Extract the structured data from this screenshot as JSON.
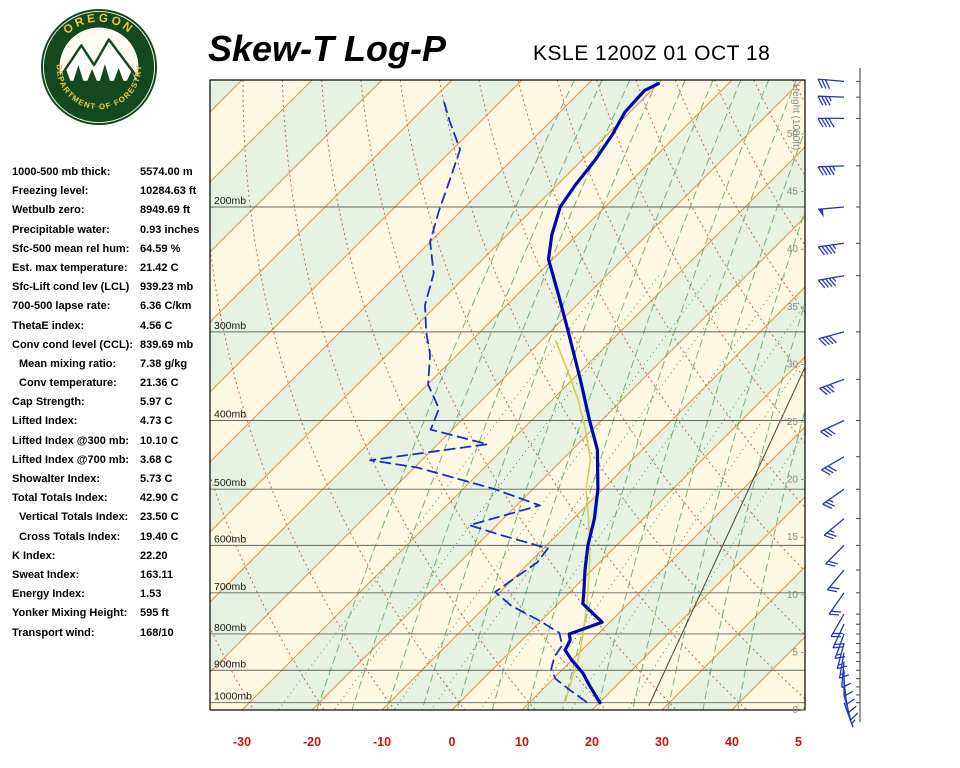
{
  "theme": {
    "logo_green": "#14491f",
    "logo_gold": "#ecc43f"
  },
  "header": {
    "title": "Skew-T Log-P",
    "station": "KSLE 1200Z 01 OCT 18",
    "logo": {
      "top_text": "OREGON",
      "bottom_text": "DEPARTMENT OF FORESTRY"
    }
  },
  "stats": [
    {
      "label": "1000-500 mb thick:",
      "value": "5574.00 m",
      "indent": false
    },
    {
      "label": "Freezing level:",
      "value": "10284.63 ft",
      "indent": false
    },
    {
      "label": "Wetbulb zero:",
      "value": "8949.69 ft",
      "indent": false
    },
    {
      "label": "Precipitable water:",
      "value": "0.93 inches",
      "indent": false
    },
    {
      "label": "Sfc-500 mean rel hum:",
      "value": "64.59 %",
      "indent": false
    },
    {
      "label": "Est. max temperature:",
      "value": "21.42 C",
      "indent": false
    },
    {
      "label": "Sfc-Lift cond lev (LCL)",
      "value": "939.23 mb",
      "indent": false
    },
    {
      "label": "700-500 lapse rate:",
      "value": "6.36 C/km",
      "indent": false
    },
    {
      "label": "ThetaE index:",
      "value": "4.56 C",
      "indent": false
    },
    {
      "label": "Conv cond level (CCL):",
      "value": "839.69 mb",
      "indent": false
    },
    {
      "label": "Mean mixing ratio:",
      "value": "7.38 g/kg",
      "indent": true
    },
    {
      "label": "Conv temperature:",
      "value": "21.36 C",
      "indent": true
    },
    {
      "label": "Cap Strength:",
      "value": "5.97 C",
      "indent": false
    },
    {
      "label": "Lifted Index:",
      "value": "4.73 C",
      "indent": false
    },
    {
      "label": "Lifted Index @300 mb:",
      "value": "10.10 C",
      "indent": false
    },
    {
      "label": "Lifted Index @700 mb:",
      "value": "3.68 C",
      "indent": false
    },
    {
      "label": "Showalter Index:",
      "value": "5.73 C",
      "indent": false
    },
    {
      "label": "Total Totals Index:",
      "value": "42.90 C",
      "indent": false
    },
    {
      "label": "Vertical Totals Index:",
      "value": "23.50 C",
      "indent": true
    },
    {
      "label": "Cross Totals Index:",
      "value": "19.40 C",
      "indent": true
    },
    {
      "label": "K Index:",
      "value": "22.20",
      "indent": false
    },
    {
      "label": "Sweat Index:",
      "value": "163.11",
      "indent": false
    },
    {
      "label": "Energy Index:",
      "value": "1.53",
      "indent": false
    },
    {
      "label": "Yonker Mixing Height:",
      "value": "595 ft",
      "indent": false
    },
    {
      "label": "Transport wind:",
      "value": "168/10",
      "indent": false
    }
  ],
  "chart_data": {
    "type": "skewt-log-p",
    "title": "Skew-T Log-P",
    "station": "KSLE 1200Z 01 OCT 18",
    "pressure_axis": {
      "levels": [
        200,
        300,
        400,
        500,
        600,
        700,
        800,
        900,
        1000
      ],
      "labels": [
        "200mb",
        "300mb",
        "400mb",
        "500mb",
        "600mb",
        "700mb",
        "800mb",
        "900mb",
        "1000mb"
      ],
      "top_pressure_mb": 132,
      "line_color": "#666666",
      "label_color": "#1a1a1a"
    },
    "temp_axis": {
      "color": "#cc1111",
      "ticks": [
        {
          "t": -30,
          "label": "-30"
        },
        {
          "t": -20,
          "label": "-20"
        },
        {
          "t": -10,
          "label": "-10"
        },
        {
          "t": 0,
          "label": "0"
        },
        {
          "t": 10,
          "label": "10"
        },
        {
          "t": 20,
          "label": "20"
        },
        {
          "t": 30,
          "label": "30"
        },
        {
          "t": 40,
          "label": "40"
        },
        {
          "t": 49.5,
          "label": "5"
        }
      ]
    },
    "height_axis": {
      "label": "Height (1000ft)",
      "ticks": [
        0,
        5,
        10,
        15,
        20,
        25,
        30,
        35,
        40,
        45,
        50
      ],
      "color": "#8a8a8a"
    },
    "grid": {
      "band_colors": [
        "#fcf8e3",
        "#e6f1e1"
      ],
      "isotherm_color": "#e2953f",
      "isotherm_step": 10,
      "dry_adiabat_color": "#c96a52",
      "dry_adiabats": {
        "start": -30,
        "end": 160,
        "step": 10
      },
      "moist_adiabat_color": "#62a862",
      "moist_adiabats": {
        "start": -20,
        "end": 40,
        "step": 5
      },
      "mixing_ratio_color": "#4d9a4d",
      "mixing_ratios": [
        0.5,
        1,
        2,
        3,
        5,
        8,
        12,
        20
      ],
      "ref_line": {
        "color": "#444444",
        "from": {
          "p": 1010,
          "t": 27.5
        },
        "to": {
          "p": 337,
          "t": 1.5
        }
      }
    },
    "series": {
      "temperature": {
        "name": "Temperature",
        "color": "#0008b5",
        "points": [
          {
            "p": 1000,
            "t": 20.1
          },
          {
            "p": 945,
            "t": 16.1
          },
          {
            "p": 908,
            "t": 13.4
          },
          {
            "p": 871,
            "t": 10.0
          },
          {
            "p": 843,
            "t": 7.6
          },
          {
            "p": 816,
            "t": 6.9
          },
          {
            "p": 800,
            "t": 5.9
          },
          {
            "p": 770,
            "t": 8.9
          },
          {
            "p": 725,
            "t": 3.5
          },
          {
            "p": 700,
            "t": 2.1
          },
          {
            "p": 650,
            "t": -1.0
          },
          {
            "p": 600,
            "t": -4.1
          },
          {
            "p": 550,
            "t": -7.0
          },
          {
            "p": 500,
            "t": -10.7
          },
          {
            "p": 440,
            "t": -16.4
          },
          {
            "p": 400,
            "t": -21.7
          },
          {
            "p": 350,
            "t": -28.9
          },
          {
            "p": 300,
            "t": -37.4
          },
          {
            "p": 266,
            "t": -44.1
          },
          {
            "p": 237,
            "t": -50.6
          },
          {
            "p": 219,
            "t": -53.6
          },
          {
            "p": 200,
            "t": -56.4
          },
          {
            "p": 186,
            "t": -57.4
          },
          {
            "p": 172,
            "t": -58.1
          },
          {
            "p": 158,
            "t": -59.3
          },
          {
            "p": 147,
            "t": -60.7
          },
          {
            "p": 137,
            "t": -61.0
          },
          {
            "p": 134,
            "t": -60.0
          }
        ]
      },
      "dewpoint": {
        "name": "Dewpoint",
        "color": "#1a30c0",
        "points": [
          {
            "p": 997,
            "t": 18.0
          },
          {
            "p": 960,
            "t": 14.0
          },
          {
            "p": 925,
            "t": 10.3
          },
          {
            "p": 896,
            "t": 8.3
          },
          {
            "p": 860,
            "t": 7.0
          },
          {
            "p": 830,
            "t": 6.5
          },
          {
            "p": 797,
            "t": 4.3
          },
          {
            "p": 766,
            "t": -0.3
          },
          {
            "p": 730,
            "t": -6.4
          },
          {
            "p": 698,
            "t": -10.7
          },
          {
            "p": 668,
            "t": -9.9
          },
          {
            "p": 634,
            "t": -8.9
          },
          {
            "p": 606,
            "t": -9.4
          },
          {
            "p": 580,
            "t": -18.1
          },
          {
            "p": 562,
            "t": -23.9
          },
          {
            "p": 527,
            "t": -16.7
          },
          {
            "p": 500,
            "t": -25.4
          },
          {
            "p": 466,
            "t": -39.6
          },
          {
            "p": 455,
            "t": -47.4
          },
          {
            "p": 432,
            "t": -32.9
          },
          {
            "p": 412,
            "t": -43.1
          },
          {
            "p": 385,
            "t": -44.9
          },
          {
            "p": 356,
            "t": -49.9
          },
          {
            "p": 323,
            "t": -53.9
          },
          {
            "p": 300,
            "t": -57.7
          },
          {
            "p": 275,
            "t": -61.7
          },
          {
            "p": 248,
            "t": -65.0
          },
          {
            "p": 224,
            "t": -70.0
          },
          {
            "p": 203,
            "t": -73.1
          },
          {
            "p": 186,
            "t": -75.6
          },
          {
            "p": 166,
            "t": -78.9
          },
          {
            "p": 151,
            "t": -84.6
          },
          {
            "p": 140,
            "t": -88.9
          }
        ]
      },
      "parcel": {
        "name": "Parcel path",
        "color": "#d4ce52",
        "points": [
          {
            "p": 1000,
            "t": 15.1
          },
          {
            "p": 932,
            "t": 12.9
          },
          {
            "p": 871,
            "t": 10.9
          },
          {
            "p": 816,
            "t": 8.6
          },
          {
            "p": 764,
            "t": 6.1
          },
          {
            "p": 716,
            "t": 3.6
          },
          {
            "p": 672,
            "t": 1.0
          },
          {
            "p": 630,
            "t": -1.7
          },
          {
            "p": 590,
            "t": -4.6
          },
          {
            "p": 553,
            "t": -7.6
          },
          {
            "p": 500,
            "t": -12.4
          },
          {
            "p": 454,
            "t": -16.0
          },
          {
            "p": 412,
            "t": -21.0
          },
          {
            "p": 374,
            "t": -26.3
          },
          {
            "p": 340,
            "t": -32.0
          },
          {
            "p": 309,
            "t": -37.9
          }
        ]
      }
    },
    "winds": {
      "color": "#2635bb",
      "axis_color": "#333333",
      "levels": [
        {
          "p": 1000,
          "dir": 160,
          "spd": 5
        },
        {
          "p": 975,
          "dir": 165,
          "spd": 8
        },
        {
          "p": 950,
          "dir": 170,
          "spd": 10
        },
        {
          "p": 925,
          "dir": 175,
          "spd": 10
        },
        {
          "p": 900,
          "dir": 180,
          "spd": 12
        },
        {
          "p": 875,
          "dir": 185,
          "spd": 12
        },
        {
          "p": 850,
          "dir": 190,
          "spd": 15
        },
        {
          "p": 825,
          "dir": 195,
          "spd": 15
        },
        {
          "p": 800,
          "dir": 200,
          "spd": 15
        },
        {
          "p": 775,
          "dir": 205,
          "spd": 18
        },
        {
          "p": 750,
          "dir": 210,
          "spd": 18
        },
        {
          "p": 700,
          "dir": 215,
          "spd": 20
        },
        {
          "p": 650,
          "dir": 220,
          "spd": 20
        },
        {
          "p": 600,
          "dir": 225,
          "spd": 22
        },
        {
          "p": 550,
          "dir": 230,
          "spd": 25
        },
        {
          "p": 500,
          "dir": 235,
          "spd": 25
        },
        {
          "p": 450,
          "dir": 240,
          "spd": 28
        },
        {
          "p": 400,
          "dir": 245,
          "spd": 30
        },
        {
          "p": 350,
          "dir": 250,
          "spd": 35
        },
        {
          "p": 300,
          "dir": 255,
          "spd": 40
        },
        {
          "p": 250,
          "dir": 260,
          "spd": 45
        },
        {
          "p": 225,
          "dir": 262,
          "spd": 45
        },
        {
          "p": 200,
          "dir": 265,
          "spd": 50
        },
        {
          "p": 175,
          "dir": 268,
          "spd": 45
        },
        {
          "p": 150,
          "dir": 270,
          "spd": 40
        },
        {
          "p": 140,
          "dir": 272,
          "spd": 35
        },
        {
          "p": 133,
          "dir": 275,
          "spd": 30
        }
      ]
    }
  }
}
